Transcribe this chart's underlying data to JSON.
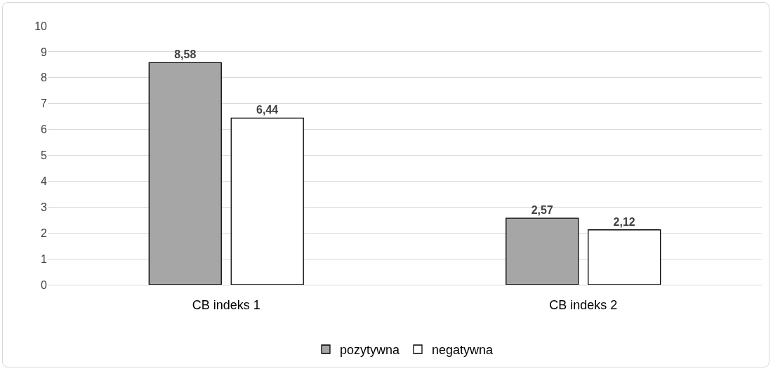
{
  "chart_data": {
    "type": "bar",
    "categories": [
      "CB indeks 1",
      "CB indeks 2"
    ],
    "series": [
      {
        "name": "pozytywna",
        "color": "#a6a6a6",
        "values": [
          8.58,
          2.57
        ],
        "value_labels": [
          "8,58",
          "2,57"
        ]
      },
      {
        "name": "negatywna",
        "color": "#ffffff",
        "values": [
          6.44,
          2.12
        ],
        "value_labels": [
          "6,44",
          "2,12"
        ]
      }
    ],
    "ylim": [
      0,
      10
    ],
    "yticks": [
      0,
      1,
      2,
      3,
      4,
      5,
      6,
      7,
      8,
      9,
      10
    ],
    "grid": "y",
    "legend": "bottom"
  }
}
